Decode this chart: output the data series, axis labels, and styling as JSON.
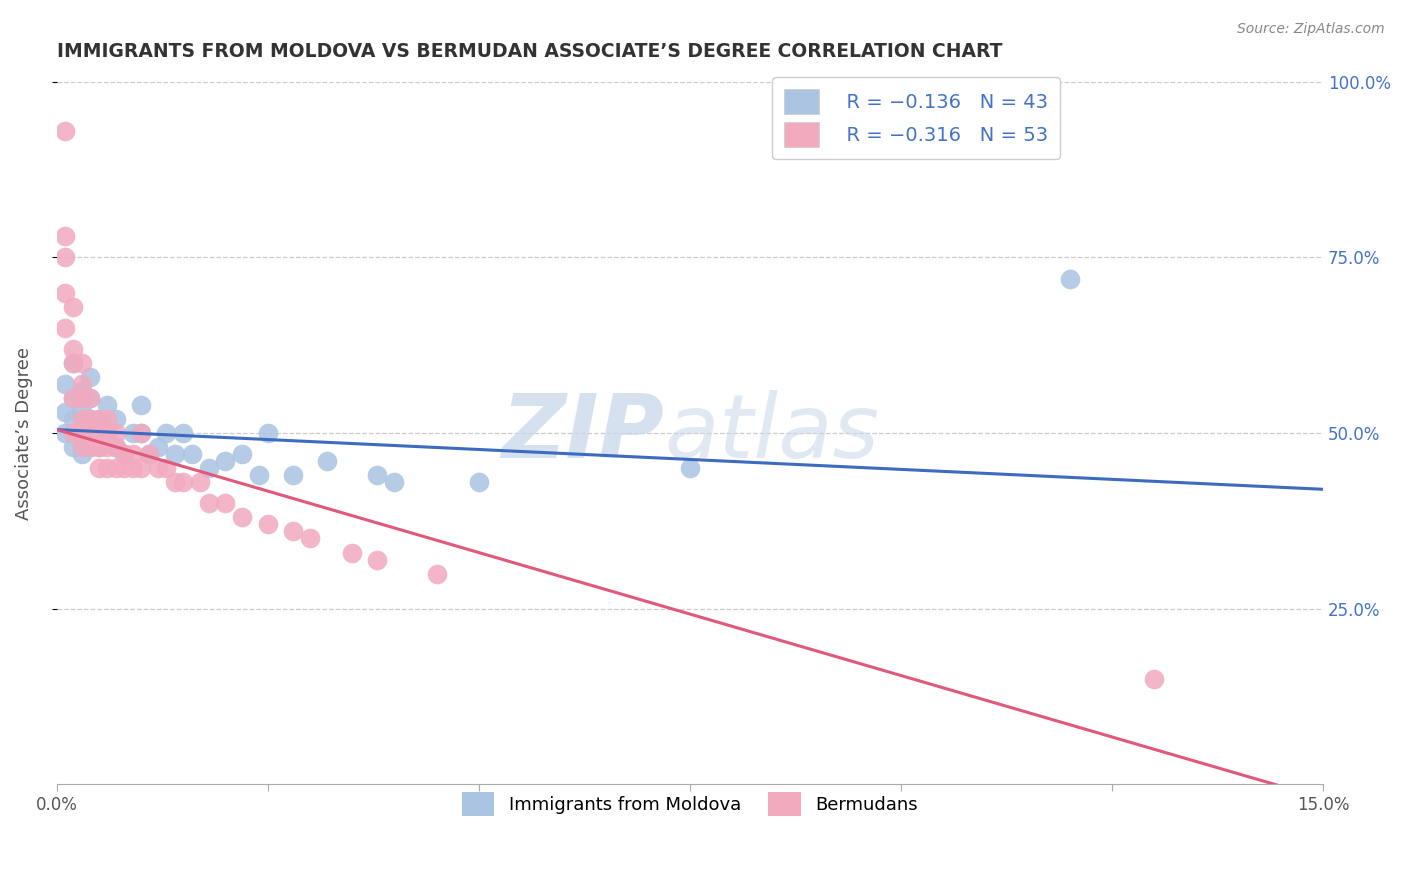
{
  "title": "IMMIGRANTS FROM MOLDOVA VS BERMUDAN ASSOCIATE’S DEGREE CORRELATION CHART",
  "source": "Source: ZipAtlas.com",
  "ylabel": "Associate’s Degree",
  "xlim": [
    0.0,
    0.15
  ],
  "ylim": [
    0.0,
    1.0
  ],
  "xtick_positions": [
    0.0,
    0.025,
    0.05,
    0.075,
    0.1,
    0.125,
    0.15
  ],
  "xtick_labels_show": [
    "0.0%",
    "",
    "",
    "",
    "",
    "",
    "15.0%"
  ],
  "ytick_values": [
    0.25,
    0.5,
    0.75,
    1.0
  ],
  "ytick_labels": [
    "25.0%",
    "50.0%",
    "75.0%",
    "100.0%"
  ],
  "watermark_zip": "ZIP",
  "watermark_atlas": "atlas",
  "series1_color": "#aac4e2",
  "series2_color": "#f2aabf",
  "line1_color": "#3d6bbf",
  "line2_color": "#e0587a",
  "background_color": "#ffffff",
  "grid_color": "#cccccc",
  "title_color": "#333333",
  "series1_x": [
    0.001,
    0.001,
    0.001,
    0.002,
    0.002,
    0.002,
    0.002,
    0.003,
    0.003,
    0.003,
    0.003,
    0.004,
    0.004,
    0.004,
    0.004,
    0.005,
    0.005,
    0.006,
    0.006,
    0.007,
    0.007,
    0.008,
    0.009,
    0.01,
    0.01,
    0.011,
    0.012,
    0.013,
    0.014,
    0.015,
    0.016,
    0.018,
    0.02,
    0.022,
    0.024,
    0.025,
    0.028,
    0.032,
    0.038,
    0.04,
    0.05,
    0.075,
    0.12
  ],
  "series1_y": [
    0.5,
    0.53,
    0.57,
    0.48,
    0.52,
    0.55,
    0.6,
    0.47,
    0.5,
    0.53,
    0.56,
    0.48,
    0.52,
    0.55,
    0.58,
    0.48,
    0.52,
    0.5,
    0.54,
    0.48,
    0.52,
    0.47,
    0.5,
    0.5,
    0.54,
    0.47,
    0.48,
    0.5,
    0.47,
    0.5,
    0.47,
    0.45,
    0.46,
    0.47,
    0.44,
    0.5,
    0.44,
    0.46,
    0.44,
    0.43,
    0.43,
    0.45,
    0.72
  ],
  "series2_x": [
    0.001,
    0.001,
    0.001,
    0.001,
    0.001,
    0.002,
    0.002,
    0.002,
    0.002,
    0.002,
    0.003,
    0.003,
    0.003,
    0.003,
    0.003,
    0.003,
    0.004,
    0.004,
    0.004,
    0.004,
    0.005,
    0.005,
    0.005,
    0.005,
    0.006,
    0.006,
    0.006,
    0.006,
    0.007,
    0.007,
    0.007,
    0.008,
    0.008,
    0.009,
    0.009,
    0.01,
    0.01,
    0.011,
    0.012,
    0.013,
    0.014,
    0.015,
    0.017,
    0.018,
    0.02,
    0.022,
    0.025,
    0.028,
    0.03,
    0.035,
    0.038,
    0.045,
    0.13
  ],
  "series2_y": [
    0.93,
    0.78,
    0.75,
    0.7,
    0.65,
    0.68,
    0.62,
    0.6,
    0.55,
    0.5,
    0.6,
    0.57,
    0.55,
    0.52,
    0.5,
    0.48,
    0.55,
    0.52,
    0.5,
    0.48,
    0.52,
    0.5,
    0.48,
    0.45,
    0.52,
    0.5,
    0.48,
    0.45,
    0.5,
    0.48,
    0.45,
    0.47,
    0.45,
    0.47,
    0.45,
    0.45,
    0.5,
    0.47,
    0.45,
    0.45,
    0.43,
    0.43,
    0.43,
    0.4,
    0.4,
    0.38,
    0.37,
    0.36,
    0.35,
    0.33,
    0.32,
    0.3,
    0.15
  ],
  "line1_x": [
    0.0,
    0.15
  ],
  "line1_y": [
    0.505,
    0.42
  ],
  "line2_x": [
    0.0,
    0.15
  ],
  "line2_y": [
    0.505,
    -0.02
  ]
}
